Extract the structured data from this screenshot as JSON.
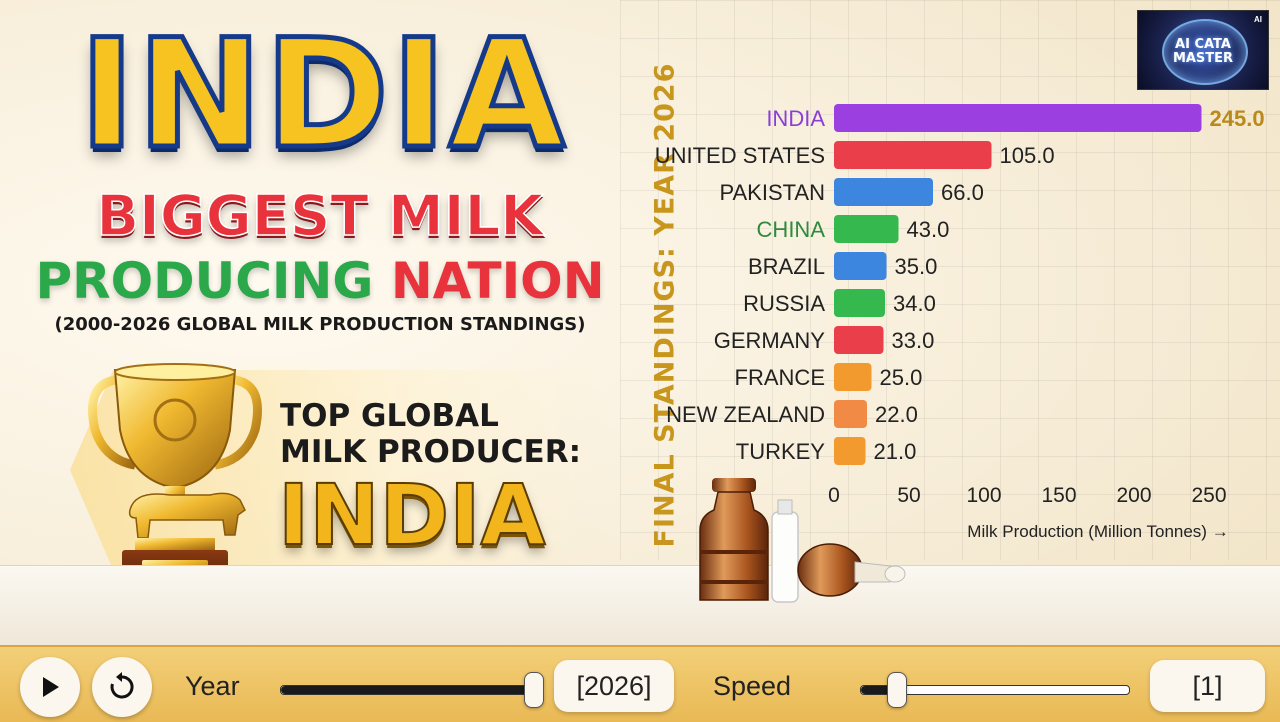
{
  "header": {
    "title": "INDIA",
    "headline_line2": "BIGGEST MILK",
    "headline_line3_a": "PRODUCING",
    "headline_line3_b": "NATION",
    "subtitle": "(2000-2026 GLOBAL MILK PRODUCTION STANDINGS)"
  },
  "banner": {
    "top_label_line1": "TOP GLOBAL",
    "top_label_line2": "MILK PRODUCER:",
    "winner": "INDIA"
  },
  "logo": {
    "line1": "AI CATA",
    "line2": "MASTER",
    "badge": "AI"
  },
  "chart_data": {
    "type": "bar",
    "orientation": "horizontal",
    "title": "FINAL STANDINGS: YEAR 2026",
    "xlabel": "Milk Production (Million Tonnes) →",
    "ylabel": "",
    "xlim": [
      0,
      250
    ],
    "xticks": [
      0,
      50,
      100,
      150,
      200,
      250
    ],
    "grid": true,
    "categories": [
      "INDIA",
      "UNITED STATES",
      "PAKISTAN",
      "CHINA",
      "BRAZIL",
      "RUSSIA",
      "GERMANY",
      "FRANCE",
      "NEW ZEALAND",
      "TURKEY"
    ],
    "values": [
      245.0,
      105.0,
      66.0,
      43.0,
      35.0,
      34.0,
      33.0,
      25.0,
      22.0,
      21.0
    ],
    "value_labels": [
      "245.0",
      "105.0",
      "66.0",
      "43.0",
      "35.0",
      "34.0",
      "33.0",
      "25.0",
      "22.0",
      "21.0"
    ],
    "colors": [
      "#9b3fe0",
      "#ea3f4a",
      "#3c86e0",
      "#35b94f",
      "#3c86e0",
      "#35b94f",
      "#ea3f4a",
      "#f29a2e",
      "#f08a45",
      "#f29a2e"
    ],
    "label_colors": [
      "#8a3fd6",
      "#222222",
      "#222222",
      "#2f8a3e",
      "#222222",
      "#222222",
      "#222222",
      "#222222",
      "#222222",
      "#222222"
    ],
    "highlight_value_color": "#b98a1a"
  },
  "controls": {
    "play_icon": "play-icon",
    "reset_icon": "reset-icon",
    "year_label": "Year",
    "year_value": "[2026]",
    "year_progress": 1.0,
    "speed_label": "Speed",
    "speed_value": "[1]",
    "speed_progress": 0.13
  }
}
